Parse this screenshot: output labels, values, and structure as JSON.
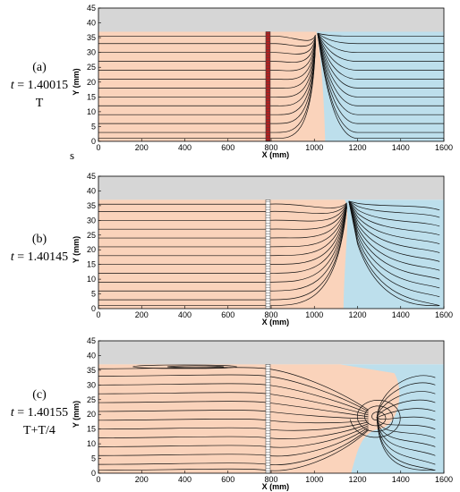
{
  "panels": [
    {
      "id": "a",
      "letter": "(a)",
      "time_label": "t = 1.40015",
      "phase_label": "T"
    },
    {
      "id": "b",
      "letter": "(b)",
      "time_label": "t = 1.40145",
      "phase_label": ""
    },
    {
      "id": "c",
      "letter": "(c)",
      "time_label": "t = 1.40155",
      "phase_label": "T+T/4"
    }
  ],
  "stray_text": "s",
  "axes": {
    "x_label": "X (mm)",
    "y_label": "Y (mm)",
    "x_ticks": [
      "0",
      "200",
      "400",
      "600",
      "800",
      "1000",
      "1200",
      "1400",
      "1600"
    ],
    "y_ticks": [
      "0",
      "5",
      "10",
      "15",
      "20",
      "25",
      "30",
      "35",
      "40",
      "45"
    ],
    "x_range": [
      0,
      1600
    ],
    "y_range": [
      0,
      45
    ]
  },
  "colors": {
    "liquid_left": "#fad3bb",
    "liquid_right": "#bddfec",
    "top_band": "#d6d6d6",
    "streamline": "#111111",
    "mesh_marker_a": "#b02020"
  }
}
